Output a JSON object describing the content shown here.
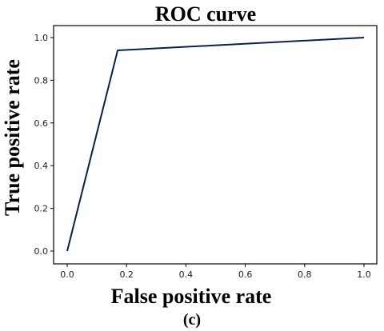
{
  "chart_data": {
    "type": "line",
    "title": "ROC curve",
    "xlabel": "False positive rate",
    "ylabel": "True positive rate",
    "xlim": [
      0.0,
      1.0
    ],
    "ylim": [
      0.0,
      1.0
    ],
    "x_ticks": [
      "0.0",
      "0.2",
      "0.4",
      "0.6",
      "0.8",
      "1.0"
    ],
    "y_ticks": [
      "0.0",
      "0.2",
      "0.4",
      "0.6",
      "0.8",
      "1.0"
    ],
    "grid": false,
    "legend": "none",
    "series": [
      {
        "color": "#0b1f4f",
        "x": [
          0.0,
          0.17,
          1.0
        ],
        "y": [
          0.0,
          0.94,
          1.0
        ]
      }
    ]
  },
  "caption": "(c)"
}
